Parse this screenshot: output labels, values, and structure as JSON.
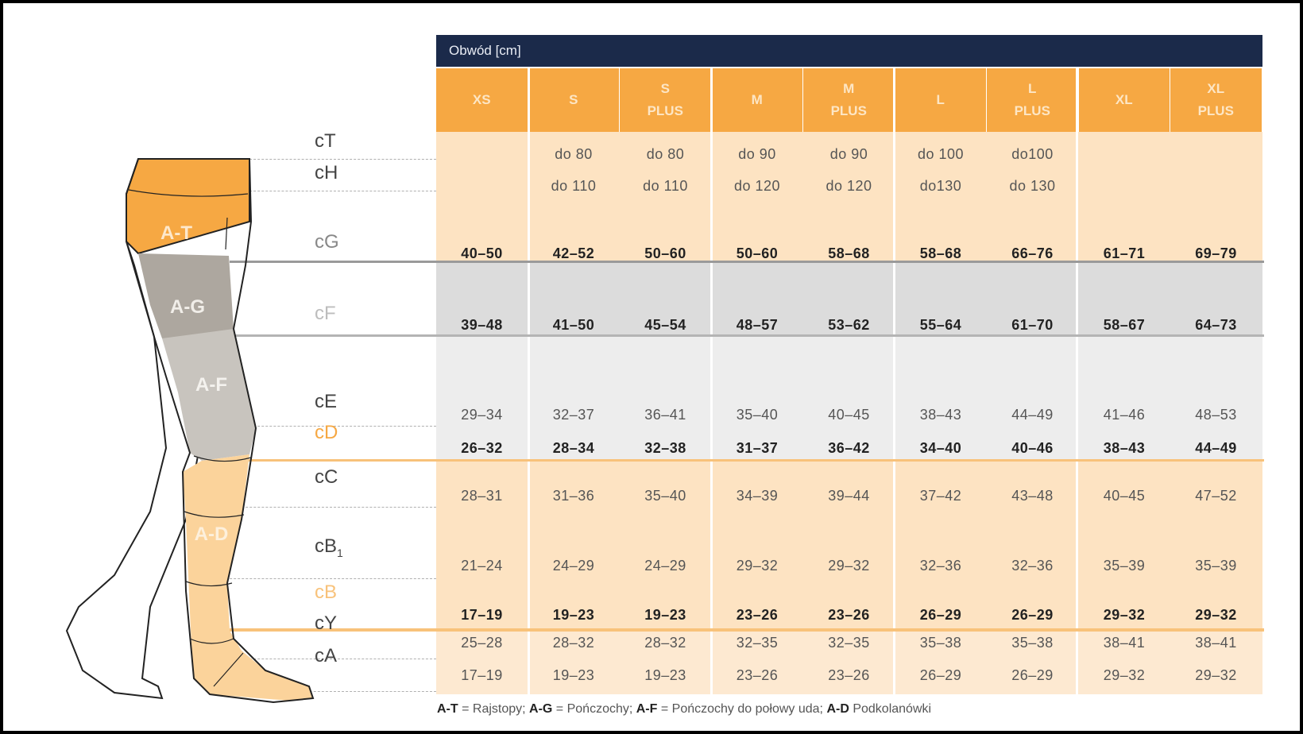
{
  "header": {
    "title": "Obwód [cm]"
  },
  "sizes": [
    {
      "line1": "XS",
      "line2": ""
    },
    {
      "line1": "S",
      "line2": ""
    },
    {
      "line1": "S",
      "line2": "PLUS"
    },
    {
      "line1": "M",
      "line2": ""
    },
    {
      "line1": "M",
      "line2": "PLUS"
    },
    {
      "line1": "L",
      "line2": ""
    },
    {
      "line1": "L",
      "line2": "PLUS"
    },
    {
      "line1": "XL",
      "line2": ""
    },
    {
      "line1": "XL",
      "line2": "PLUS"
    }
  ],
  "zones": {
    "at": "A-T",
    "ag": "A-G",
    "af": "A-F",
    "ad": "A-D"
  },
  "colors": {
    "navy": "#1b2a4a",
    "orange": "#f6a843",
    "peach": "#fde3c2",
    "gray": "#dadada",
    "lightgray": "#ececec",
    "cream": "#fce9d1"
  },
  "chart_data": {
    "type": "table",
    "title": "Obwód [cm]",
    "columns": [
      "XS",
      "S",
      "S PLUS",
      "M",
      "M PLUS",
      "L",
      "L PLUS",
      "XL",
      "XL PLUS"
    ],
    "rows": [
      {
        "label": "cT",
        "bold": false,
        "values": [
          "",
          "do 80",
          "do 80",
          "do 90",
          "do 90",
          "do 100",
          "do100",
          "",
          ""
        ]
      },
      {
        "label": "cH",
        "bold": false,
        "values": [
          "",
          "do 110",
          "do 110",
          "do 120",
          "do 120",
          "do130",
          "do 130",
          "",
          ""
        ]
      },
      {
        "label": "cG",
        "bold": true,
        "values": [
          "40–50",
          "42–52",
          "50–60",
          "50–60",
          "58–68",
          "58–68",
          "66–76",
          "61–71",
          "69–79"
        ]
      },
      {
        "label": "cF",
        "bold": true,
        "values": [
          "39–48",
          "41–50",
          "45–54",
          "48–57",
          "53–62",
          "55–64",
          "61–70",
          "58–67",
          "64–73"
        ]
      },
      {
        "label": "cE",
        "bold": false,
        "values": [
          "29–34",
          "32–37",
          "36–41",
          "35–40",
          "40–45",
          "38–43",
          "44–49",
          "41–46",
          "48–53"
        ]
      },
      {
        "label": "cD",
        "bold": true,
        "values": [
          "26–32",
          "28–34",
          "32–38",
          "31–37",
          "36–42",
          "34–40",
          "40–46",
          "38–43",
          "44–49"
        ]
      },
      {
        "label": "cC",
        "bold": false,
        "values": [
          "28–31",
          "31–36",
          "35–40",
          "34–39",
          "39–44",
          "37–42",
          "43–48",
          "40–45",
          "47–52"
        ]
      },
      {
        "label": "cB1",
        "bold": false,
        "values": [
          "21–24",
          "24–29",
          "24–29",
          "29–32",
          "29–32",
          "32–36",
          "32–36",
          "35–39",
          "35–39"
        ]
      },
      {
        "label": "cB",
        "bold": true,
        "values": [
          "17–19",
          "19–23",
          "19–23",
          "23–26",
          "23–26",
          "26–29",
          "26–29",
          "29–32",
          "29–32"
        ]
      },
      {
        "label": "cY",
        "bold": false,
        "values": [
          "25–28",
          "28–32",
          "28–32",
          "32–35",
          "32–35",
          "35–38",
          "35–38",
          "38–41",
          "38–41"
        ]
      },
      {
        "label": "cA",
        "bold": false,
        "values": [
          "17–19",
          "19–23",
          "19–23",
          "23–26",
          "23–26",
          "26–29",
          "26–29",
          "29–32",
          "29–32"
        ]
      }
    ]
  },
  "legend": {
    "at_key": "A-T",
    "at_text": " = Rajstopy; ",
    "ag_key": "A-G",
    "ag_text": " = Pończochy; ",
    "af_key": "A-F",
    "af_text": " = Pończochy do połowy uda; ",
    "ad_key": "A-D",
    "ad_text": " Podkolanówki"
  }
}
